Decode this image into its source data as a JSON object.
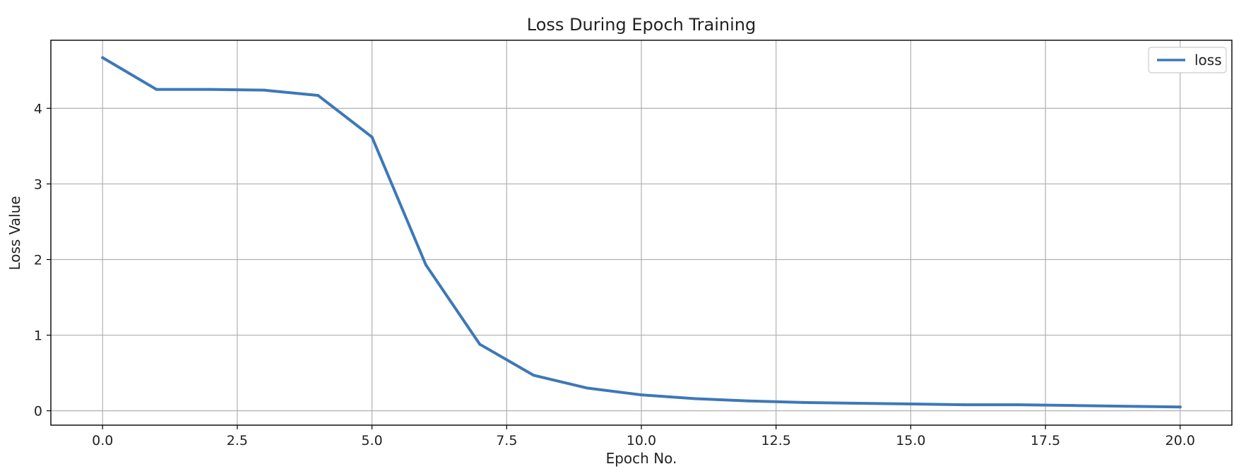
{
  "chart_data": {
    "type": "line",
    "title": "Loss During Epoch Training",
    "xlabel": "Epoch No.",
    "ylabel": "Loss Value",
    "xlim": [
      -0.96,
      20.96
    ],
    "ylim": [
      -0.19,
      4.9
    ],
    "xticks": [
      0.0,
      2.5,
      5.0,
      7.5,
      10.0,
      12.5,
      15.0,
      17.5,
      20.0
    ],
    "xtick_labels": [
      "0.0",
      "2.5",
      "5.0",
      "7.5",
      "10.0",
      "12.5",
      "15.0",
      "17.5",
      "20.0"
    ],
    "yticks": [
      0,
      1,
      2,
      3,
      4
    ],
    "ytick_labels": [
      "0",
      "1",
      "2",
      "3",
      "4"
    ],
    "grid": true,
    "legend_position": "top-right",
    "x": [
      0,
      1,
      2,
      3,
      4,
      5,
      6,
      7,
      8,
      9,
      10,
      11,
      12,
      13,
      14,
      15,
      16,
      17,
      18,
      19,
      20
    ],
    "series": [
      {
        "name": "loss",
        "color": "#3d78b8",
        "values": [
          4.67,
          4.25,
          4.25,
          4.24,
          4.17,
          3.62,
          1.93,
          0.88,
          0.47,
          0.3,
          0.21,
          0.16,
          0.13,
          0.11,
          0.1,
          0.09,
          0.08,
          0.08,
          0.07,
          0.06,
          0.05
        ]
      }
    ]
  }
}
